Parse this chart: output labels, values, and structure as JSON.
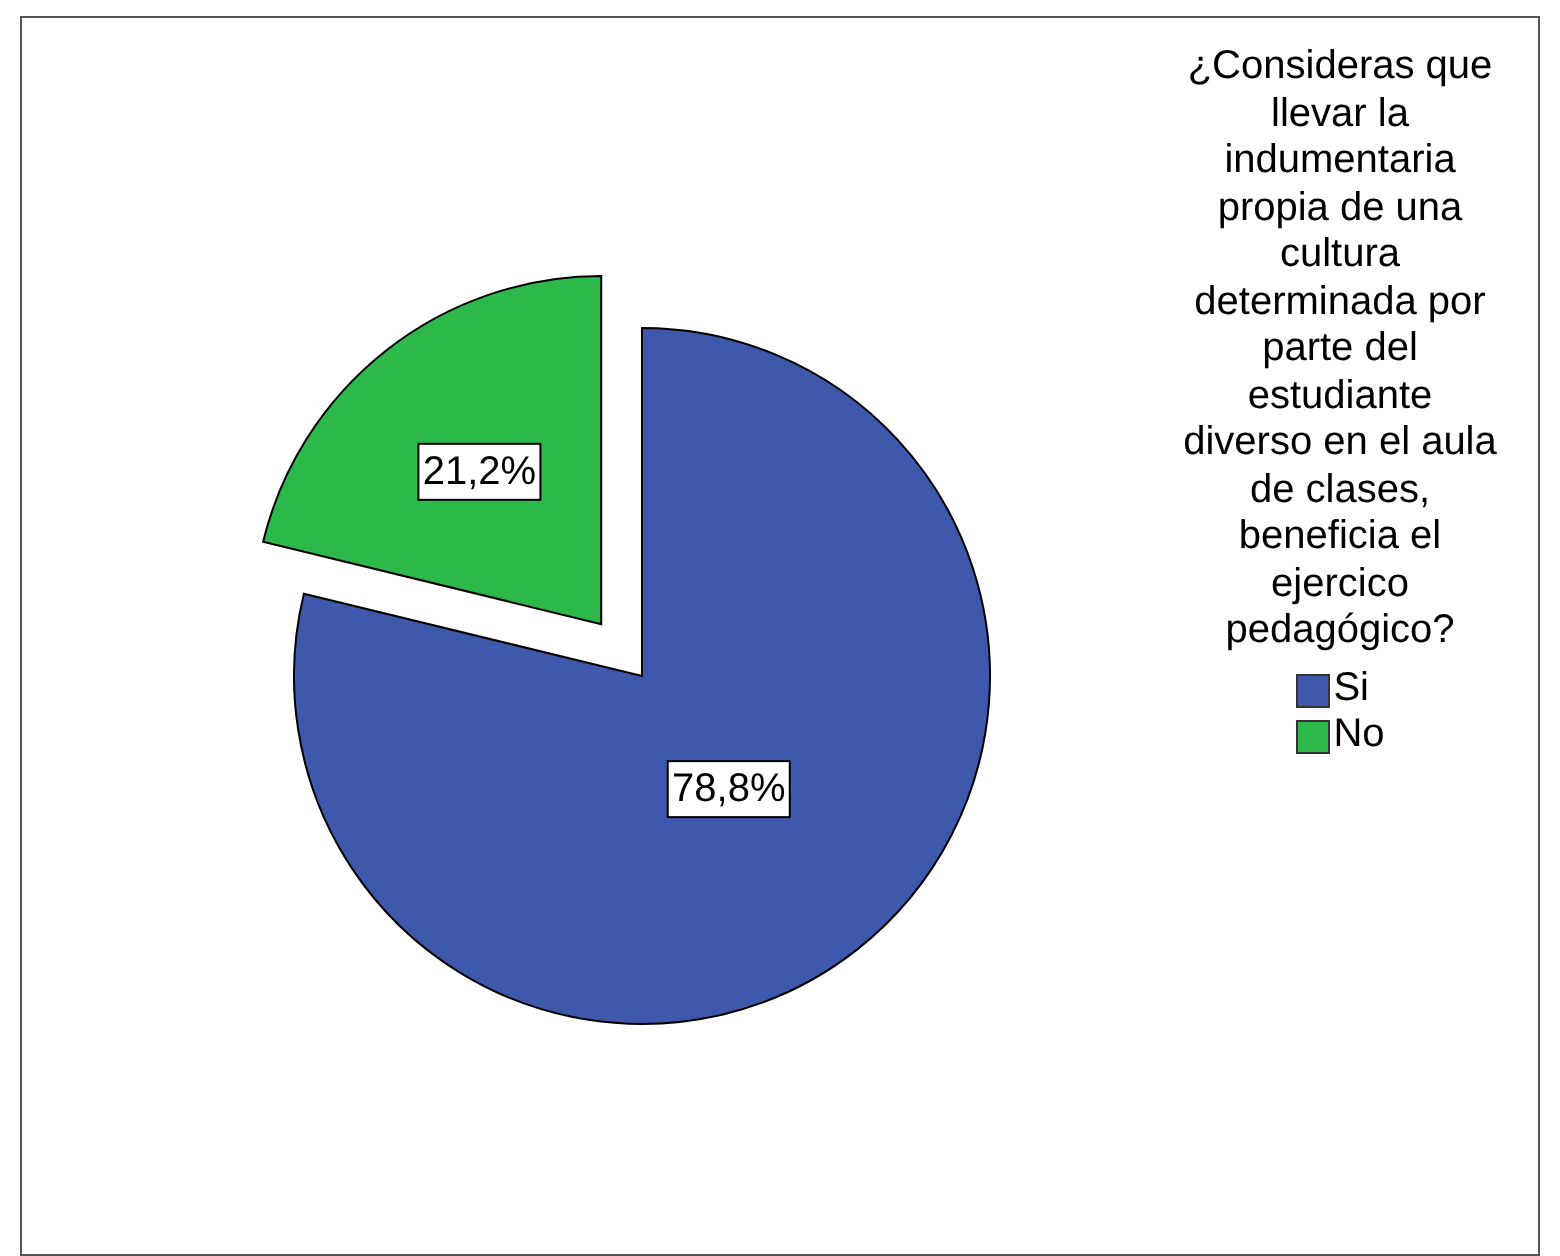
{
  "chart_data": {
    "type": "pie",
    "categories": [
      "Si",
      "No"
    ],
    "values": [
      78.8,
      21.2
    ],
    "colors": [
      "#3e58ac",
      "#2db84a"
    ],
    "value_labels": [
      "78,8%",
      "21,2%"
    ],
    "legend_title": "¿Consideras que llevar la indumentaria propia de una cultura determinada por parte del estudiante diverso en el aula de clases, beneficia el ejercico pedagógico?",
    "legend": "right"
  }
}
